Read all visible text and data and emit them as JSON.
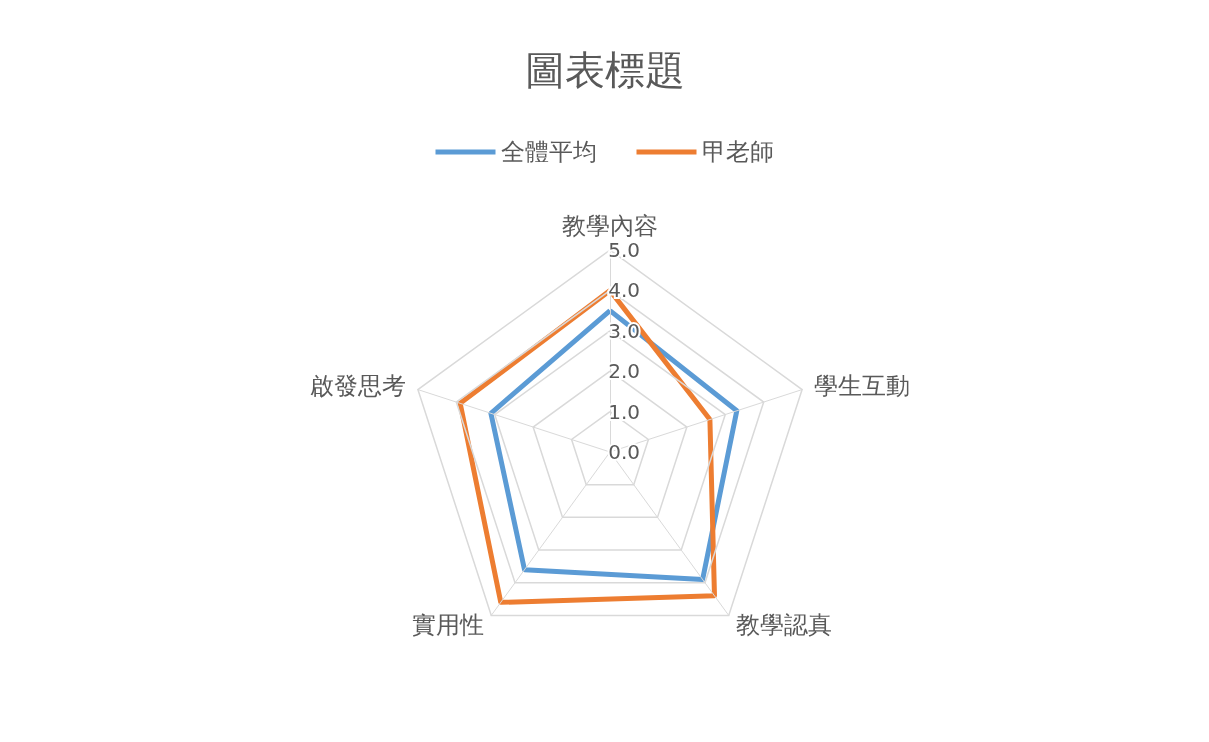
{
  "chart_data": {
    "type": "radar",
    "title": "圖表標題",
    "categories": [
      "教學內容",
      "學生互動",
      "教學認真",
      "實用性",
      "啟發思考"
    ],
    "series": [
      {
        "name": "全體平均",
        "color": "#5b9bd5",
        "values": [
          3.5,
          3.3,
          3.9,
          3.6,
          3.1
        ]
      },
      {
        "name": "甲老師",
        "color": "#ed7d31",
        "values": [
          4.0,
          2.6,
          4.4,
          4.6,
          3.9
        ]
      }
    ],
    "ylim": [
      0,
      5
    ],
    "yticks": [
      {
        "value": 0,
        "label": "0.0"
      },
      {
        "value": 1,
        "label": "1.0"
      },
      {
        "value": 2,
        "label": "2.0"
      },
      {
        "value": 3,
        "label": "3.0"
      },
      {
        "value": 4,
        "label": "4.0"
      },
      {
        "value": 5,
        "label": "5.0"
      }
    ],
    "legend": "top",
    "marker": "none",
    "line_style": "solid"
  }
}
